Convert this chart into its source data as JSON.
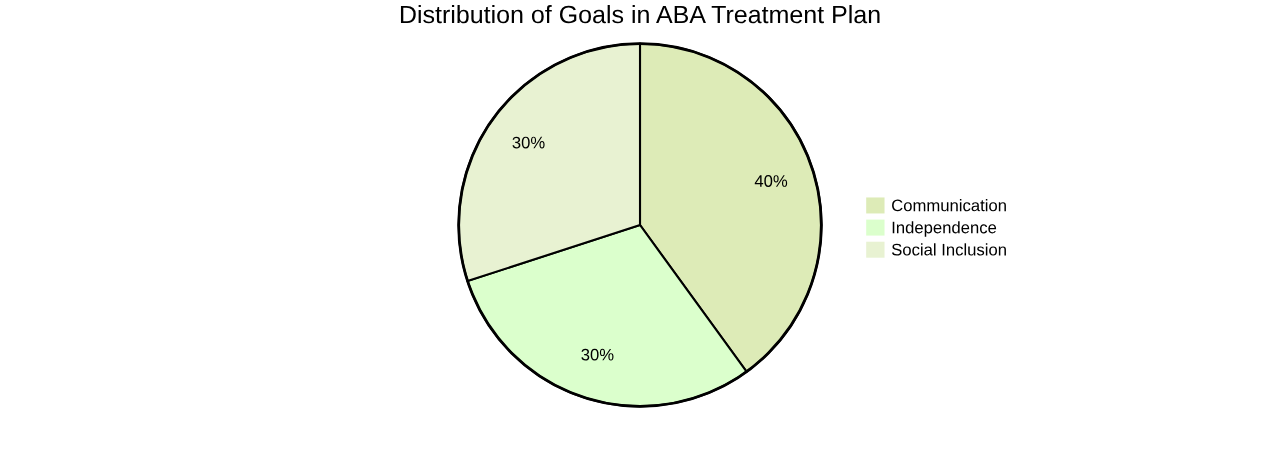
{
  "chart_data": {
    "type": "pie",
    "title": "Distribution of Goals in ABA Treatment Plan",
    "categories": [
      "Communication",
      "Independence",
      "Social Inclusion"
    ],
    "values": [
      40,
      30,
      30
    ],
    "colors": [
      "#ddebb7",
      "#dbffcc",
      "#e8f2d2"
    ],
    "value_labels": [
      "40%",
      "30%",
      "30%"
    ],
    "legend": "right"
  }
}
